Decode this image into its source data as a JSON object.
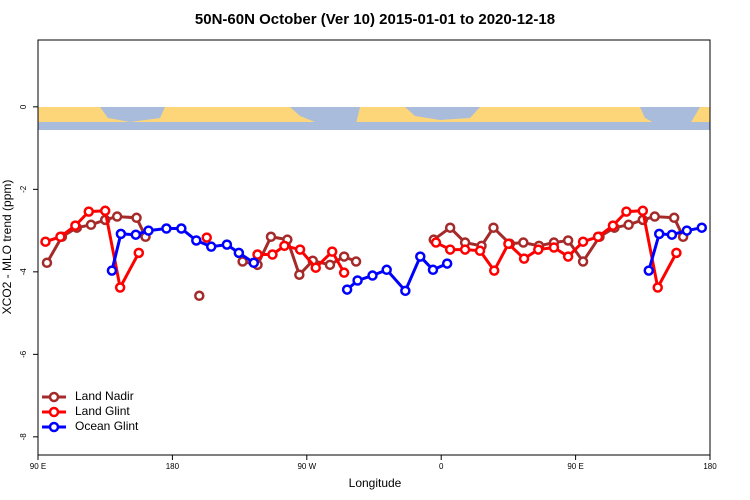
{
  "chart_data": {
    "type": "line",
    "title": "50N-60N October (Ver 10)   2015-01-01 to 2020-12-18",
    "x_label": "Longitude",
    "y_label": "XCO2 - MLO trend (ppm)",
    "xlim": [
      90,
      540
    ],
    "xticks": [
      {
        "value": 90,
        "label": "90 E"
      },
      180,
      {
        "value": 270,
        "label": "90 W"
      },
      {
        "value": 360,
        "label": "0"
      },
      {
        "value": 450,
        "label": "90 E"
      },
      {
        "value": 540,
        "label": "180"
      }
    ],
    "ylim": [
      -8.44,
      1.62
    ],
    "yticks": [
      0,
      -2,
      -4,
      -6,
      -8
    ],
    "legend": "bottom-left",
    "series": [
      {
        "name": "Land Nadir",
        "color": "#a52a2a",
        "x": [
          96,
          106,
          116,
          125.5,
          135,
          143,
          156,
          162,
          null,
          198,
          null,
          227,
          237,
          246,
          257,
          265,
          274,
          285.5,
          295,
          303,
          null,
          355,
          366,
          376,
          387,
          395,
          406,
          415,
          425.5,
          435.5,
          445,
          455,
          466,
          476,
          485.5,
          495,
          503,
          516,
          522
        ],
        "values": [
          -3.78,
          -3.15,
          -2.93,
          -2.86,
          -2.74,
          -2.66,
          -2.69,
          -3.15,
          null,
          -4.58,
          null,
          -3.75,
          -3.83,
          -3.15,
          -3.22,
          -4.07,
          -3.73,
          -3.83,
          -3.63,
          -3.75,
          null,
          -3.22,
          -2.93,
          -3.29,
          -3.37,
          -2.93,
          -3.32,
          -3.29,
          -3.37,
          -3.29,
          -3.24,
          -3.75,
          -3.15,
          -2.93,
          -2.86,
          -2.74,
          -2.66,
          -2.69,
          -3.15
        ]
      },
      {
        "name": "Land Glint",
        "color": "#ff0000",
        "x": [
          95,
          105,
          115,
          124,
          135,
          145,
          157.5,
          null,
          203,
          null,
          237,
          247,
          255,
          265.5,
          276,
          287,
          295,
          null,
          356.5,
          366,
          376,
          386,
          395.5,
          405,
          415.5,
          425,
          435.5,
          445,
          455,
          465,
          475,
          484,
          495,
          505,
          517.5
        ],
        "values": [
          -3.27,
          -3.15,
          -2.88,
          -2.54,
          -2.52,
          -4.38,
          -3.54,
          null,
          -3.17,
          null,
          -3.58,
          -3.58,
          -3.37,
          -3.46,
          -3.9,
          -3.51,
          -4.02,
          null,
          -3.29,
          -3.46,
          -3.46,
          -3.49,
          -3.97,
          -3.32,
          -3.68,
          -3.46,
          -3.41,
          -3.63,
          -3.27,
          -3.15,
          -2.88,
          -2.54,
          -2.52,
          -4.38,
          -3.54
        ]
      },
      {
        "name": "Ocean Glint",
        "color": "#0000ff",
        "x": [
          139.5,
          145.5,
          155.5,
          164,
          176,
          186,
          196,
          206,
          216.5,
          224.5,
          234.5,
          null,
          297,
          304,
          314,
          323.5,
          336,
          346,
          354.5,
          364,
          null,
          499,
          506,
          514.5,
          524.5,
          534.5
        ],
        "values": [
          -3.97,
          -3.08,
          -3.1,
          -3.0,
          -2.95,
          -2.95,
          -3.24,
          -3.39,
          -3.34,
          -3.54,
          -3.78,
          null,
          -4.43,
          -4.21,
          -4.09,
          -3.95,
          -4.46,
          -3.63,
          -3.95,
          -3.8,
          null,
          -3.97,
          -3.08,
          -3.1,
          -3.0,
          -2.93
        ]
      }
    ]
  }
}
